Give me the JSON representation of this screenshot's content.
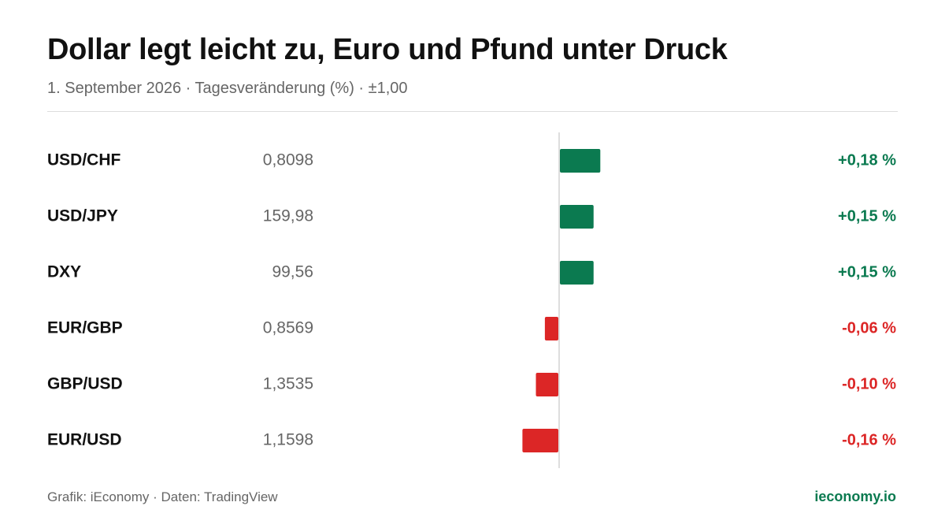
{
  "header": {
    "title": "Dollar legt leicht zu, Euro und Pfund unter Druck",
    "subtitle": "1. September 2026 · Tagesveränderung (%) · ±1,00"
  },
  "footer": {
    "source": "Grafik: iEconomy · Daten: TradingView",
    "brand": "ieconomy.io"
  },
  "colors": {
    "positive": "#0b7a50",
    "negative": "#dc2626",
    "axis": "#d4d4d4",
    "label": "#111111",
    "price": "#666666"
  },
  "chart_data": {
    "type": "bar",
    "orientation": "horizontal",
    "title": "Dollar legt leicht zu, Euro und Pfund unter Druck",
    "subtitle": "1. September 2026 · Tagesveränderung (%) · ±1,00",
    "xlabel": "",
    "ylabel": "",
    "unit": "%",
    "grid": false,
    "legend": "none",
    "categories": [
      "USD/CHF",
      "USD/JPY",
      "DXY",
      "EUR/GBP",
      "GBP/USD",
      "EUR/USD"
    ],
    "prices": [
      "0,8098",
      "159,98",
      "99,56",
      "0,8569",
      "1,3535",
      "1,1598"
    ],
    "values": [
      0.18,
      0.15,
      0.15,
      -0.06,
      -0.1,
      -0.16
    ],
    "value_labels": [
      "+0,18 %",
      "+0,15 %",
      "+0,15 %",
      "-0,06 %",
      "-0,10 %",
      "-0,16 %"
    ]
  }
}
